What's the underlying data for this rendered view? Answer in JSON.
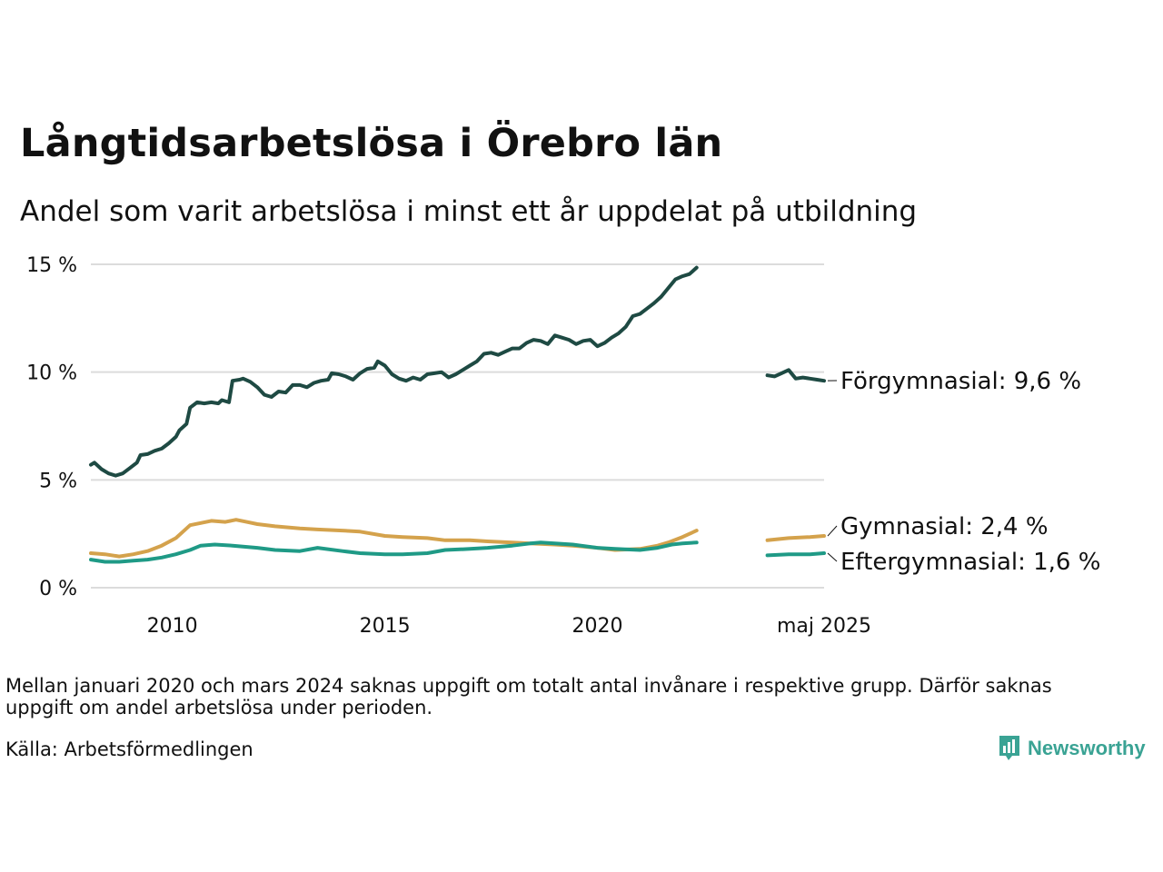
{
  "header": {
    "title": "Långtidsarbetslösa i Örebro län",
    "subtitle": "Andel som varit arbetslösa i minst ett år uppdelat på utbildning"
  },
  "footer": {
    "note": "Mellan januari 2020 och mars 2024 saknas uppgift om totalt antal invånare i respektive grupp. Därför saknas uppgift om andel arbetslösa under perioden.",
    "source": "Källa: Arbetsförmedlingen",
    "brand": "Newsworthy",
    "brand_color": "#3aa394"
  },
  "chart_data": {
    "type": "line",
    "title": "Långtidsarbetslösa i Örebro län",
    "subtitle": "Andel som varit arbetslösa i minst ett år uppdelat på utbildning",
    "ylim": [
      0,
      15
    ],
    "y_ticks": [
      0,
      5,
      10,
      15
    ],
    "y_tick_labels": [
      "0 %",
      "5 %",
      "10 %",
      "15 %"
    ],
    "x_ticks": [
      {
        "value": "2010-01",
        "label": "2010"
      },
      {
        "value": "2015-01",
        "label": "2015"
      },
      {
        "value": "2020-01",
        "label": "2020"
      },
      {
        "value": "2025-05",
        "label": "maj 2025"
      }
    ],
    "grid": true,
    "legend": "direct labels at right",
    "series": [
      {
        "name": "Förgymnasial",
        "label": "Förgymnasial: 9,6 %",
        "color": "#1e4a43",
        "segments": [
          [
            [
              "2008-02",
              5.7
            ],
            [
              "2008-03",
              5.8
            ],
            [
              "2008-05",
              5.5
            ],
            [
              "2008-07",
              5.3
            ],
            [
              "2008-09",
              5.2
            ],
            [
              "2008-11",
              5.3
            ],
            [
              "2009-01",
              5.55
            ],
            [
              "2009-03",
              5.8
            ],
            [
              "2009-04",
              6.15
            ],
            [
              "2009-06",
              6.2
            ],
            [
              "2009-08",
              6.35
            ],
            [
              "2009-10",
              6.45
            ],
            [
              "2009-12",
              6.7
            ],
            [
              "2010-02",
              7.0
            ],
            [
              "2010-03",
              7.3
            ],
            [
              "2010-05",
              7.6
            ],
            [
              "2010-06",
              8.35
            ],
            [
              "2010-08",
              8.6
            ],
            [
              "2010-10",
              8.55
            ],
            [
              "2010-12",
              8.6
            ],
            [
              "2011-02",
              8.55
            ],
            [
              "2011-03",
              8.7
            ],
            [
              "2011-05",
              8.6
            ],
            [
              "2011-06",
              9.6
            ],
            [
              "2011-08",
              9.65
            ],
            [
              "2011-09",
              9.7
            ],
            [
              "2011-11",
              9.55
            ],
            [
              "2012-01",
              9.3
            ],
            [
              "2012-03",
              8.95
            ],
            [
              "2012-05",
              8.85
            ],
            [
              "2012-07",
              9.1
            ],
            [
              "2012-09",
              9.05
            ],
            [
              "2012-11",
              9.4
            ],
            [
              "2013-01",
              9.4
            ],
            [
              "2013-03",
              9.3
            ],
            [
              "2013-05",
              9.5
            ],
            [
              "2013-07",
              9.6
            ],
            [
              "2013-09",
              9.65
            ],
            [
              "2013-10",
              9.95
            ],
            [
              "2013-12",
              9.9
            ],
            [
              "2014-02",
              9.8
            ],
            [
              "2014-04",
              9.65
            ],
            [
              "2014-06",
              9.95
            ],
            [
              "2014-08",
              10.15
            ],
            [
              "2014-10",
              10.2
            ],
            [
              "2014-11",
              10.5
            ],
            [
              "2015-01",
              10.3
            ],
            [
              "2015-03",
              9.9
            ],
            [
              "2015-05",
              9.7
            ],
            [
              "2015-07",
              9.6
            ],
            [
              "2015-09",
              9.75
            ],
            [
              "2015-11",
              9.65
            ],
            [
              "2016-01",
              9.9
            ],
            [
              "2016-03",
              9.95
            ],
            [
              "2016-05",
              10.0
            ],
            [
              "2016-07",
              9.75
            ],
            [
              "2016-09",
              9.9
            ],
            [
              "2016-11",
              10.1
            ],
            [
              "2017-01",
              10.3
            ],
            [
              "2017-03",
              10.5
            ],
            [
              "2017-05",
              10.85
            ],
            [
              "2017-07",
              10.9
            ],
            [
              "2017-09",
              10.8
            ],
            [
              "2017-11",
              10.95
            ],
            [
              "2018-01",
              11.1
            ],
            [
              "2018-03",
              11.1
            ],
            [
              "2018-05",
              11.35
            ],
            [
              "2018-07",
              11.5
            ],
            [
              "2018-09",
              11.45
            ],
            [
              "2018-11",
              11.3
            ],
            [
              "2019-01",
              11.7
            ],
            [
              "2019-03",
              11.6
            ],
            [
              "2019-05",
              11.5
            ],
            [
              "2019-07",
              11.3
            ],
            [
              "2019-09",
              11.45
            ],
            [
              "2019-11",
              11.5
            ],
            [
              "2020-01",
              11.2
            ],
            [
              "2020-03",
              11.35
            ],
            [
              "2020-05",
              11.6
            ],
            [
              "2020-07",
              11.8
            ],
            [
              "2020-09",
              12.1
            ],
            [
              "2020-11",
              12.6
            ],
            [
              "2021-01",
              12.7
            ],
            [
              "2021-03",
              12.95
            ],
            [
              "2021-05",
              13.2
            ],
            [
              "2021-07",
              13.5
            ],
            [
              "2021-09",
              13.9
            ],
            [
              "2021-11",
              14.3
            ],
            [
              "2022-01",
              14.45
            ],
            [
              "2022-03",
              14.55
            ],
            [
              "2022-05",
              14.85
            ]
          ],
          [
            [
              "2024-01",
              9.85
            ],
            [
              "2024-03",
              9.8
            ],
            [
              "2024-05",
              9.95
            ],
            [
              "2024-07",
              10.1
            ],
            [
              "2024-09",
              9.7
            ],
            [
              "2024-11",
              9.75
            ],
            [
              "2025-01",
              9.7
            ],
            [
              "2025-03",
              9.65
            ],
            [
              "2025-05",
              9.6
            ]
          ]
        ]
      },
      {
        "name": "Gymnasial",
        "label": "Gymnasial: 2,4 %",
        "color": "#d4a24c",
        "segments": [
          [
            [
              "2008-02",
              1.6
            ],
            [
              "2008-06",
              1.55
            ],
            [
              "2008-10",
              1.45
            ],
            [
              "2009-02",
              1.55
            ],
            [
              "2009-06",
              1.7
            ],
            [
              "2009-10",
              1.95
            ],
            [
              "2010-02",
              2.3
            ],
            [
              "2010-04",
              2.6
            ],
            [
              "2010-06",
              2.9
            ],
            [
              "2010-09",
              3.0
            ],
            [
              "2010-12",
              3.1
            ],
            [
              "2011-04",
              3.05
            ],
            [
              "2011-07",
              3.15
            ],
            [
              "2011-10",
              3.05
            ],
            [
              "2012-01",
              2.95
            ],
            [
              "2012-06",
              2.85
            ],
            [
              "2013-01",
              2.75
            ],
            [
              "2013-06",
              2.7
            ],
            [
              "2014-01",
              2.65
            ],
            [
              "2014-06",
              2.6
            ],
            [
              "2015-01",
              2.4
            ],
            [
              "2015-06",
              2.35
            ],
            [
              "2016-01",
              2.3
            ],
            [
              "2016-06",
              2.2
            ],
            [
              "2017-01",
              2.2
            ],
            [
              "2017-06",
              2.15
            ],
            [
              "2018-01",
              2.1
            ],
            [
              "2018-06",
              2.05
            ],
            [
              "2019-01",
              2.0
            ],
            [
              "2019-06",
              1.95
            ],
            [
              "2020-01",
              1.85
            ],
            [
              "2020-06",
              1.75
            ],
            [
              "2021-01",
              1.8
            ],
            [
              "2021-06",
              1.95
            ],
            [
              "2021-09",
              2.1
            ],
            [
              "2022-01",
              2.35
            ],
            [
              "2022-05",
              2.65
            ]
          ],
          [
            [
              "2024-01",
              2.2
            ],
            [
              "2024-07",
              2.3
            ],
            [
              "2025-01",
              2.35
            ],
            [
              "2025-05",
              2.4
            ]
          ]
        ]
      },
      {
        "name": "Eftergymnasial",
        "label": "Eftergymnasial: 1,6 %",
        "color": "#1f9a86",
        "segments": [
          [
            [
              "2008-02",
              1.3
            ],
            [
              "2008-06",
              1.2
            ],
            [
              "2008-10",
              1.2
            ],
            [
              "2009-02",
              1.25
            ],
            [
              "2009-06",
              1.3
            ],
            [
              "2009-10",
              1.4
            ],
            [
              "2010-02",
              1.55
            ],
            [
              "2010-06",
              1.75
            ],
            [
              "2010-09",
              1.95
            ],
            [
              "2011-01",
              2.0
            ],
            [
              "2011-06",
              1.95
            ],
            [
              "2012-01",
              1.85
            ],
            [
              "2012-06",
              1.75
            ],
            [
              "2013-01",
              1.7
            ],
            [
              "2013-06",
              1.85
            ],
            [
              "2014-01",
              1.7
            ],
            [
              "2014-06",
              1.6
            ],
            [
              "2015-01",
              1.55
            ],
            [
              "2015-06",
              1.55
            ],
            [
              "2016-01",
              1.6
            ],
            [
              "2016-06",
              1.75
            ],
            [
              "2017-01",
              1.8
            ],
            [
              "2017-06",
              1.85
            ],
            [
              "2018-01",
              1.95
            ],
            [
              "2018-06",
              2.05
            ],
            [
              "2018-09",
              2.1
            ],
            [
              "2019-01",
              2.05
            ],
            [
              "2019-06",
              2.0
            ],
            [
              "2020-01",
              1.85
            ],
            [
              "2020-06",
              1.8
            ],
            [
              "2021-01",
              1.75
            ],
            [
              "2021-06",
              1.85
            ],
            [
              "2021-10",
              2.0
            ],
            [
              "2022-01",
              2.05
            ],
            [
              "2022-05",
              2.1
            ]
          ],
          [
            [
              "2024-01",
              1.5
            ],
            [
              "2024-07",
              1.55
            ],
            [
              "2025-01",
              1.55
            ],
            [
              "2025-05",
              1.6
            ]
          ]
        ]
      }
    ]
  }
}
